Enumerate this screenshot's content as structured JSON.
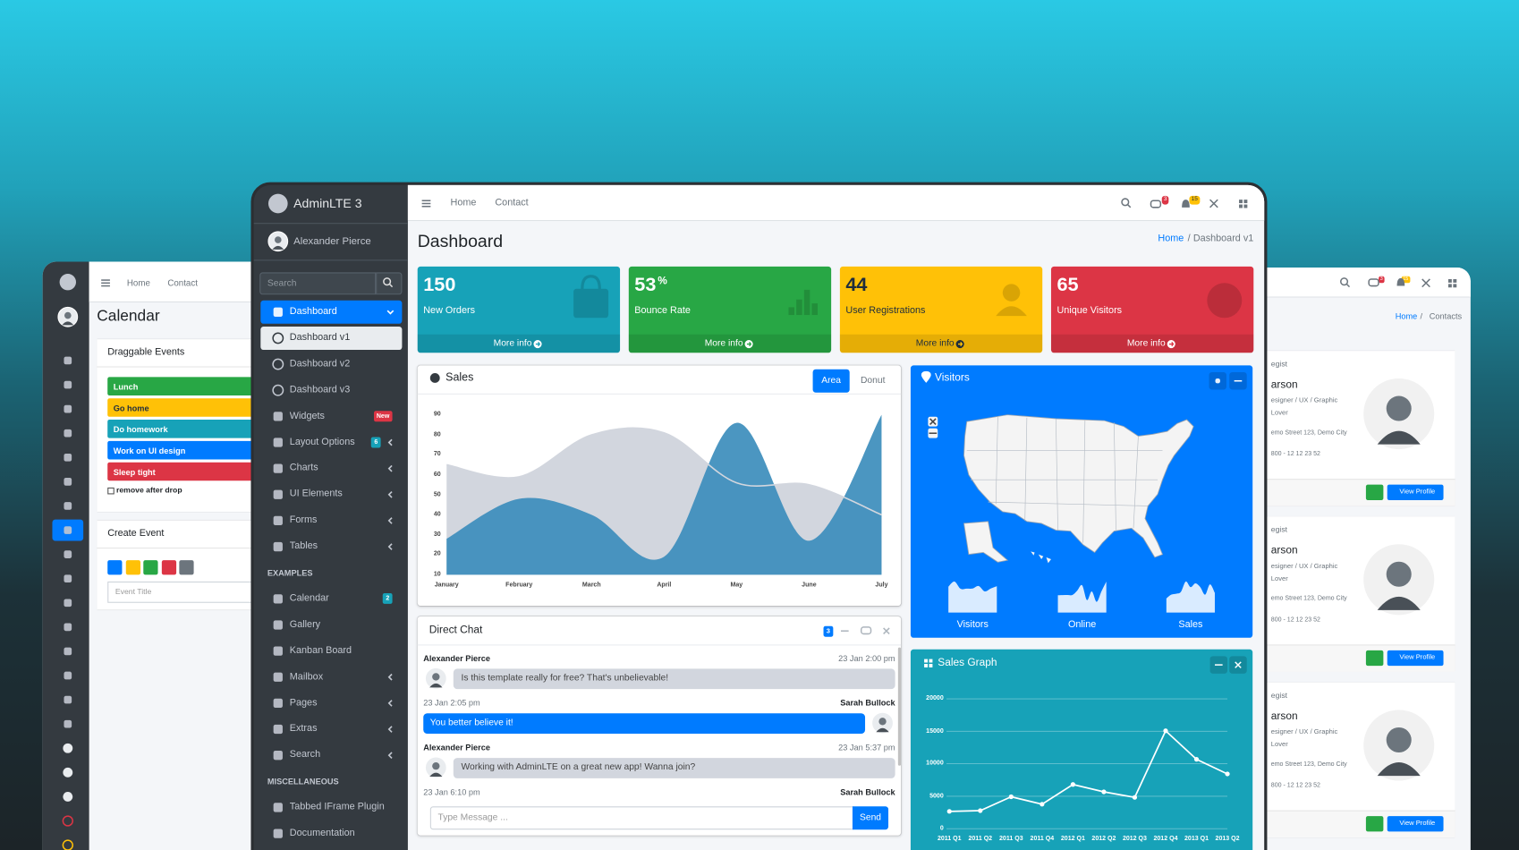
{
  "left_panel": {
    "nav": [
      "Home",
      "Contact"
    ],
    "title": "Calendar",
    "events_title": "Draggable Events",
    "events": [
      {
        "label": "Lunch",
        "color": "#28a745",
        "text_color": "#ffffff"
      },
      {
        "label": "Go home",
        "color": "#ffc107",
        "text_color": "#1f2d3d"
      },
      {
        "label": "Do homework",
        "color": "#17a2b8",
        "text_color": "#ffffff"
      },
      {
        "label": "Work on UI design",
        "color": "#007bff",
        "text_color": "#ffffff"
      },
      {
        "label": "Sleep tight",
        "color": "#dc3545",
        "text_color": "#ffffff"
      }
    ],
    "remove_label": "remove after drop",
    "create_title": "Create Event",
    "swatches": [
      "#007bff",
      "#ffc107",
      "#28a745",
      "#dc3545",
      "#6c757d"
    ],
    "input_placeholder": "Event Title"
  },
  "right_panel": {
    "badges": [
      3,
      15
    ],
    "breadcrumb": [
      "Home",
      "Contacts"
    ],
    "cards": [
      {
        "role": "egist",
        "name": "arson",
        "desc": "esigner / UX / Graphic",
        "extra": "Lover",
        "address": "emo Street 123, Demo City",
        "phone": "800 - 12 12 23 52",
        "button": "View Profile"
      },
      {
        "role": "egist",
        "name": "arson",
        "desc": "esigner / UX / Graphic",
        "extra": "Lover",
        "address": "emo Street 123, Demo City",
        "phone": "800 - 12 12 23 52",
        "button": "View Profile"
      },
      {
        "role": "egist",
        "name": "arson",
        "desc": "esigner / UX / Graphic",
        "extra": "Lover",
        "address": "emo Street 123, Demo City",
        "phone": "800 - 12 12 23 52",
        "button": "View Profile"
      }
    ]
  },
  "brand": "AdminLTE 3",
  "user": "Alexander Pierce",
  "search_placeholder": "Search",
  "menu": [
    {
      "label": "Dashboard",
      "active": true,
      "arrow": "down"
    },
    {
      "label": "Dashboard v1",
      "sub": true,
      "current": true
    },
    {
      "label": "Dashboard v2",
      "sub": true
    },
    {
      "label": "Dashboard v3",
      "sub": true
    },
    {
      "label": "Widgets",
      "badge": "New",
      "badge_color": "#dc3545"
    },
    {
      "label": "Layout Options",
      "badge": 6,
      "badge_color": "#17a2b8",
      "arrow": "left"
    },
    {
      "label": "Charts",
      "arrow": "left"
    },
    {
      "label": "UI Elements",
      "arrow": "left"
    },
    {
      "label": "Forms",
      "arrow": "left"
    },
    {
      "label": "Tables",
      "arrow": "left"
    },
    {
      "header": "EXAMPLES"
    },
    {
      "label": "Calendar",
      "badge": 2,
      "badge_color": "#17a2b8"
    },
    {
      "label": "Gallery"
    },
    {
      "label": "Kanban Board"
    },
    {
      "label": "Mailbox",
      "arrow": "left"
    },
    {
      "label": "Pages",
      "arrow": "left"
    },
    {
      "label": "Extras",
      "arrow": "left"
    },
    {
      "label": "Search",
      "arrow": "left"
    },
    {
      "header": "MISCELLANEOUS"
    },
    {
      "label": "Tabbed IFrame Plugin"
    },
    {
      "label": "Documentation"
    }
  ],
  "topnav": {
    "links": [
      "Home",
      "Contact"
    ],
    "badges": [
      {
        "value": 3,
        "color": "#dc3545"
      },
      {
        "value": 15,
        "color": "#ffc107"
      }
    ]
  },
  "page": {
    "title": "Dashboard",
    "breadcrumb": [
      "Home",
      "Dashboard v1"
    ]
  },
  "stats": [
    {
      "value": 150,
      "label": "New Orders",
      "link": "More info",
      "color": "#17a2b8",
      "text_color": "#ffffff"
    },
    {
      "value": 53,
      "suffix": "%",
      "label": "Bounce Rate",
      "link": "More info",
      "color": "#28a745",
      "text_color": "#ffffff"
    },
    {
      "value": 44,
      "label": "User Registrations",
      "link": "More info",
      "color": "#ffc107",
      "text_color": "#1f2d3d"
    },
    {
      "value": 65,
      "label": "Unique Visitors",
      "link": "More info",
      "color": "#dc3545",
      "text_color": "#ffffff"
    }
  ],
  "sales_card": {
    "title": "Sales",
    "tabs": [
      "Area",
      "Donut"
    ]
  },
  "visitors_card": {
    "title": "Visitors",
    "labels": [
      "Visitors",
      "Online",
      "Sales"
    ],
    "color": "#007bff"
  },
  "graph_card": {
    "title": "Sales Graph",
    "color": "#17a2b8"
  },
  "chat": {
    "title": "Direct Chat",
    "badge": 3,
    "messages": [
      {
        "name": "Alexander Pierce",
        "time": "23 Jan 2:00 pm",
        "text": "Is this template really for free? That's unbelievable!",
        "side": "left"
      },
      {
        "name": "Sarah Bullock",
        "time": "23 Jan 2:05 pm",
        "text": "You better believe it!",
        "side": "right"
      },
      {
        "name": "Alexander Pierce",
        "time": "23 Jan 5:37 pm",
        "text": "Working with AdminLTE on a great new app! Wanna join?",
        "side": "left"
      },
      {
        "name": "Sarah Bullock",
        "time": "23 Jan 6:10 pm",
        "side": "right"
      }
    ],
    "placeholder": "Type Message ...",
    "send": "Send"
  },
  "chart_data": [
    {
      "type": "area",
      "categories": [
        "January",
        "February",
        "March",
        "April",
        "May",
        "June",
        "July"
      ],
      "series": [
        {
          "color": "#d2d6de",
          "values": [
            65,
            59,
            80,
            81,
            56,
            55,
            40
          ]
        },
        {
          "color": "#3c8dbc",
          "values": [
            28,
            48,
            40,
            19,
            86,
            27,
            90
          ]
        }
      ],
      "ylim": [
        10,
        90
      ],
      "yticks": [
        10,
        20,
        30,
        40,
        50,
        60,
        70,
        80,
        90
      ],
      "grid": false
    },
    {
      "type": "line",
      "categories": [
        "2011 Q1",
        "2011 Q2",
        "2011 Q3",
        "2011 Q4",
        "2012 Q1",
        "2012 Q2",
        "2012 Q3",
        "2012 Q4",
        "2013 Q1",
        "2013 Q2"
      ],
      "values": [
        2666,
        2778,
        4912,
        3767,
        6810,
        5670,
        4820,
        15073,
        10687,
        8432
      ],
      "color": "#ffffff",
      "ylim": [
        0,
        20000
      ],
      "yticks": [
        0,
        5000,
        10000,
        15000,
        20000
      ],
      "grid": true
    },
    {
      "type": "sparkline",
      "values": [
        1000,
        1200,
        920,
        927,
        931,
        1027,
        819,
        930,
        1021
      ],
      "color": "#ffffff"
    },
    {
      "type": "sparkline",
      "values": [
        515,
        519,
        520,
        522,
        652,
        810,
        370,
        627,
        319,
        630,
        921
      ],
      "color": "#ffffff"
    },
    {
      "type": "sparkline",
      "values": [
        15,
        19,
        20,
        22,
        33,
        27,
        31,
        27,
        19,
        30,
        21
      ],
      "color": "#ffffff"
    }
  ]
}
